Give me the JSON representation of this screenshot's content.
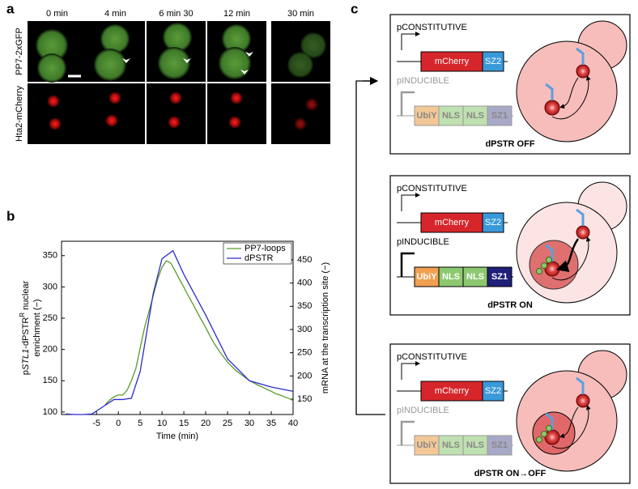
{
  "panel_a": {
    "label": "a",
    "timepoints": [
      "0 min",
      "4 min",
      "6 min 30",
      "12 min",
      "30 min"
    ],
    "rows": [
      "PP7-2xGFP",
      "Hta2-mCherry"
    ]
  },
  "panel_b": {
    "label": "b"
  },
  "chart_data": {
    "type": "line",
    "xlabel": "Time (min)",
    "ylabel_parts": [
      "p",
      "STL1",
      "-dPSTR",
      "R",
      " nuclear"
    ],
    "ylabel_line2": "enrichment (−)",
    "y2label": "mRNA at the transcription site (−)",
    "xlim": [
      -13,
      40
    ],
    "xticks": [
      -5,
      0,
      5,
      10,
      15,
      20,
      25,
      30,
      35,
      40
    ],
    "ylim": [
      96,
      373
    ],
    "yticks": [
      100,
      150,
      200,
      250,
      300,
      350
    ],
    "y2lim": [
      117,
      490
    ],
    "y2ticks": [
      150,
      200,
      250,
      300,
      350,
      400,
      450
    ],
    "legend": "upper right",
    "series": [
      {
        "name": "PP7-loops",
        "color": "#5a9a2a",
        "axis": "y2",
        "x": [
          -3,
          -2,
          -1,
          0,
          1,
          2,
          3,
          4,
          5,
          6,
          7,
          8,
          9,
          10,
          11,
          12,
          13,
          14,
          15,
          16,
          17,
          18,
          19,
          20,
          21,
          22,
          23,
          24,
          25,
          26,
          27,
          28,
          29,
          30,
          31,
          32,
          33,
          34,
          35,
          36,
          37,
          38,
          39,
          40
        ],
        "values": [
          138,
          148,
          155,
          159,
          159,
          169,
          190,
          216,
          260,
          304,
          338,
          373,
          408,
          434,
          448,
          443,
          426,
          408,
          391,
          373,
          356,
          338,
          321,
          304,
          286,
          269,
          255,
          242,
          230,
          220,
          211,
          204,
          197,
          190,
          185,
          180,
          176,
          171,
          167,
          162,
          159,
          155,
          152,
          147
        ]
      },
      {
        "name": "dPSTR",
        "color": "#2a2ad0",
        "x": [
          -12,
          -10,
          -8,
          -6,
          -1,
          1,
          3,
          5,
          8,
          10,
          12.5,
          15,
          20,
          25,
          30,
          35,
          40
        ],
        "values": [
          97,
          96,
          96,
          97,
          120,
          120,
          122,
          165,
          290,
          345,
          358,
          320,
          255,
          185,
          150,
          140,
          133
        ]
      }
    ]
  },
  "panel_c": {
    "label": "c",
    "states": [
      {
        "promoter1": "pCONSTITUTIVE",
        "genes1": [
          "mCherry",
          "SZ2"
        ],
        "promoter2": "pINDUCIBLE",
        "genes2": [
          "UbiY",
          "NLS",
          "NLS",
          "SZ1"
        ],
        "caption": "dPSTR OFF"
      },
      {
        "promoter1": "pCONSTITUTIVE",
        "genes1": [
          "mCherry",
          "SZ2"
        ],
        "promoter2": "pINDUCIBLE",
        "genes2": [
          "UbiY",
          "NLS",
          "NLS",
          "SZ1"
        ],
        "caption": "dPSTR ON"
      },
      {
        "promoter1": "pCONSTITUTIVE",
        "genes1": [
          "mCherry",
          "SZ2"
        ],
        "promoter2": "pINDUCIBLE",
        "genes2": [
          "UbiY",
          "NLS",
          "NLS",
          "SZ1"
        ],
        "caption": "dPSTR ON→OFF"
      }
    ]
  }
}
